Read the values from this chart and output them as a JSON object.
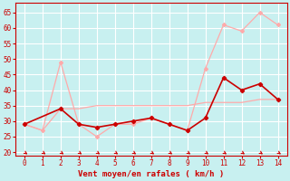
{
  "title": "",
  "xlabel": "Vent moyen/en rafales ( km/h )",
  "ylabel": "",
  "background_color": "#c8f0f0",
  "grid_color": "#ffffff",
  "xlim": [
    -0.5,
    14.5
  ],
  "ylim": [
    19,
    68
  ],
  "yticks": [
    20,
    25,
    30,
    35,
    40,
    45,
    50,
    55,
    60,
    65
  ],
  "xticks": [
    0,
    1,
    2,
    3,
    4,
    5,
    6,
    7,
    8,
    9,
    10,
    11,
    12,
    13,
    14
  ],
  "line_rafales_x": [
    0,
    1,
    2,
    3,
    4,
    5,
    6,
    7,
    8,
    9,
    10,
    11,
    12,
    13,
    14
  ],
  "line_rafales_y": [
    29,
    27,
    49,
    29,
    25,
    29,
    29,
    31,
    29,
    27,
    47,
    61,
    59,
    65,
    61
  ],
  "line_rafales_color": "#ffaaaa",
  "line_moy_x": [
    0,
    1,
    2,
    3,
    4,
    5,
    6,
    7,
    8,
    9,
    10,
    11,
    12,
    13,
    14
  ],
  "line_moy_y": [
    29,
    27,
    34,
    34,
    35,
    35,
    35,
    35,
    35,
    35,
    36,
    36,
    36,
    37,
    37
  ],
  "line_moy_color": "#ffaaaa",
  "line_dark_x": [
    0,
    2,
    3,
    4,
    5,
    6,
    7,
    8,
    9,
    10,
    11,
    12,
    13,
    14
  ],
  "line_dark_y": [
    29,
    34,
    29,
    28,
    29,
    30,
    31,
    29,
    27,
    31,
    44,
    40,
    42,
    37
  ],
  "line_dark_color": "#cc0000",
  "red_color": "#cc0000",
  "tick_labelsize": 5.5,
  "xlabel_fontsize": 6.5
}
